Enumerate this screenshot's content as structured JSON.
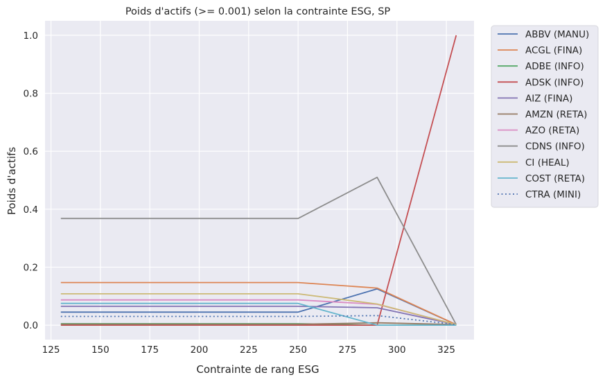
{
  "chart_data": {
    "type": "line",
    "title": "Poids d'actifs (>= 0.001) selon la contrainte ESG, SP",
    "xlabel": "Contrainte de rang ESG",
    "ylabel": "Poids d'actifs",
    "xlim": [
      122,
      339
    ],
    "ylim": [
      -0.05,
      1.05
    ],
    "x_ticks": [
      125,
      150,
      175,
      200,
      225,
      250,
      275,
      300,
      325
    ],
    "y_ticks": [
      0.0,
      0.2,
      0.4,
      0.6,
      0.8,
      1.0
    ],
    "y_tick_labels": [
      "0.0",
      "0.2",
      "0.4",
      "0.6",
      "0.8",
      "1.0"
    ],
    "grid": true,
    "legend_position": "outside upper right",
    "background": "#eaeaf2",
    "x": [
      130,
      250,
      290,
      330
    ],
    "series": [
      {
        "name": "ABBV (MANU)",
        "color": "#4c72b0",
        "dash": "solid",
        "values": [
          0.045,
          0.045,
          0.125,
          0.002
        ]
      },
      {
        "name": "ACGL (FINA)",
        "color": "#dd8452",
        "dash": "solid",
        "values": [
          0.147,
          0.147,
          0.128,
          0.002
        ]
      },
      {
        "name": "ADBE (INFO)",
        "color": "#55a868",
        "dash": "solid",
        "values": [
          0.005,
          0.005,
          0.0,
          0.0
        ]
      },
      {
        "name": "ADSK (INFO)",
        "color": "#c44e52",
        "dash": "solid",
        "values": [
          0.0,
          0.0,
          0.0,
          1.0
        ]
      },
      {
        "name": "AIZ (FINA)",
        "color": "#8172b3",
        "dash": "solid",
        "values": [
          0.065,
          0.065,
          0.06,
          0.002
        ]
      },
      {
        "name": "AMZN (RETA)",
        "color": "#937860",
        "dash": "solid",
        "values": [
          0.003,
          0.003,
          0.008,
          0.002
        ]
      },
      {
        "name": "AZO (RETA)",
        "color": "#da8bc3",
        "dash": "solid",
        "values": [
          0.087,
          0.087,
          0.072,
          0.002
        ]
      },
      {
        "name": "CDNS (INFO)",
        "color": "#8c8c8c",
        "dash": "solid",
        "values": [
          0.368,
          0.368,
          0.51,
          0.002
        ]
      },
      {
        "name": "CI (HEAL)",
        "color": "#ccb974",
        "dash": "solid",
        "values": [
          0.108,
          0.108,
          0.073,
          0.002
        ]
      },
      {
        "name": "COST (RETA)",
        "color": "#64b5cd",
        "dash": "solid",
        "values": [
          0.075,
          0.075,
          0.0,
          0.0
        ]
      },
      {
        "name": "CTRA (MINI)",
        "color": "#4c72b0",
        "dash": "dotted",
        "values": [
          0.03,
          0.03,
          0.033,
          0.002
        ]
      }
    ]
  }
}
